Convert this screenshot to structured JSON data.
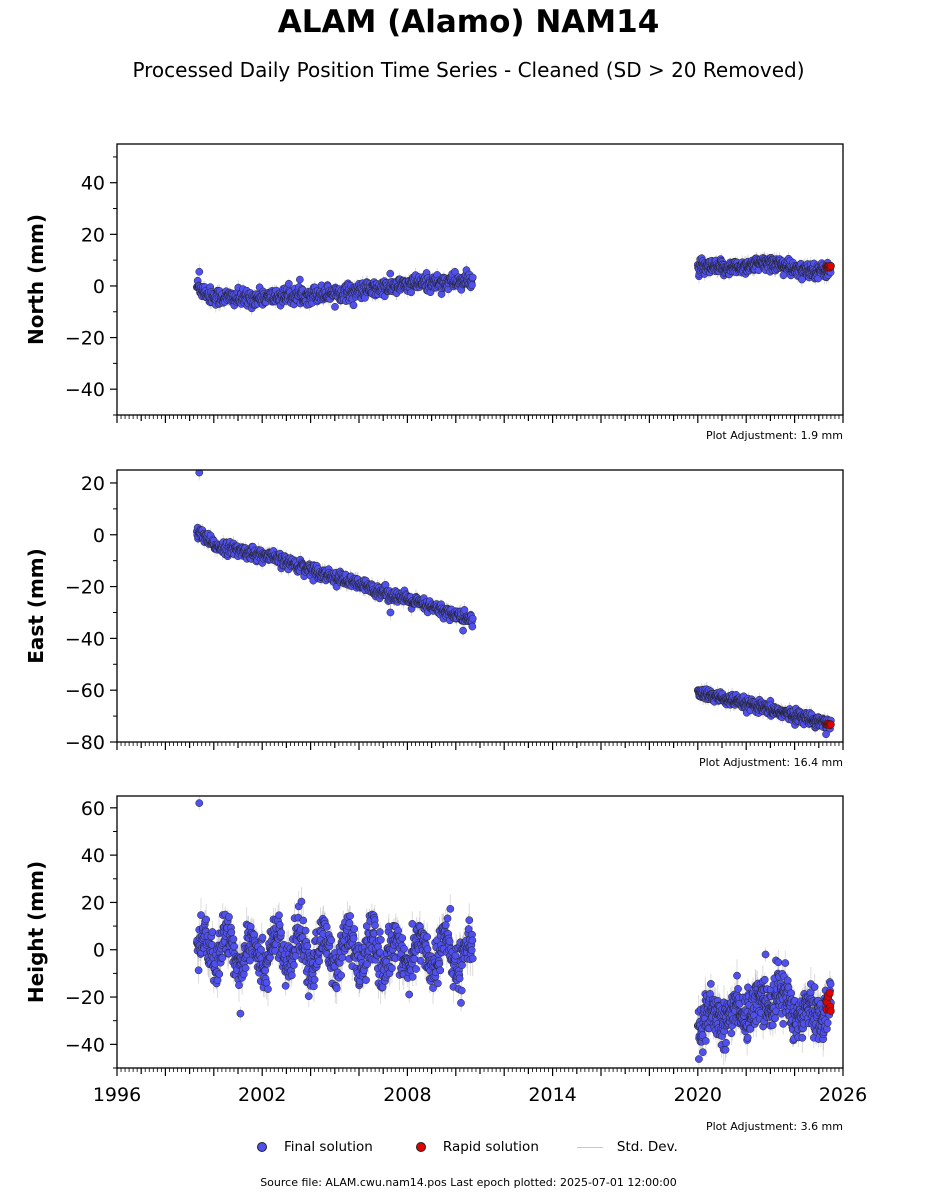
{
  "title": "ALAM (Alamo) NAM14",
  "subtitle": "Processed Daily Position Time Series - Cleaned (SD > 20 Removed)",
  "footer": "Source file: ALAM.cwu.nam14.pos  Last epoch plotted: 2025-07-01 12:00:00",
  "legend": {
    "final": "Final solution",
    "rapid": "Rapid solution",
    "std": "Std. Dev."
  },
  "colors": {
    "final": "#5050ee",
    "rapid": "#e00000",
    "std": "#c8c8c8",
    "edge": "#222222"
  },
  "chart_data": [
    {
      "type": "scatter",
      "name": "north",
      "ylabel": "North (mm)",
      "xlim": [
        1996,
        2026
      ],
      "ylim": [
        -50,
        55
      ],
      "yticks": [
        -40,
        -20,
        0,
        20,
        40
      ],
      "ytick_labels": [
        "−40",
        "−20",
        "0",
        "20",
        "40"
      ],
      "adjustment": "Plot Adjustment: 1.9 mm",
      "segments": [
        {
          "x_start": 1999.3,
          "x_end": 2010.7,
          "trend": [
            [
              1999.3,
              0
            ],
            [
              1999.9,
              -4
            ],
            [
              2001.2,
              -5
            ],
            [
              2003.0,
              -4
            ],
            [
              2006.0,
              -2
            ],
            [
              2008.5,
              1
            ],
            [
              2010.7,
              2
            ]
          ],
          "noise": 1.6,
          "sd": 2.0,
          "count": 700
        },
        {
          "x_start": 2020.0,
          "x_end": 2025.5,
          "trend": [
            [
              2020.0,
              7
            ],
            [
              2021.5,
              7
            ],
            [
              2023.0,
              9
            ],
            [
              2023.6,
              8
            ],
            [
              2024.0,
              6
            ],
            [
              2025.5,
              6
            ]
          ],
          "noise": 1.4,
          "sd": 2.0,
          "count": 450
        }
      ],
      "outliers": [
        [
          1999.4,
          5.5
        ],
        [
          2024.3,
          2.5
        ]
      ],
      "rapid": {
        "x_start": 2025.3,
        "x_end": 2025.5,
        "y": 7,
        "count": 10
      }
    },
    {
      "type": "scatter",
      "name": "east",
      "ylabel": "East (mm)",
      "xlim": [
        1996,
        2026
      ],
      "ylim": [
        -80,
        25
      ],
      "yticks": [
        -80,
        -60,
        -40,
        -20,
        0,
        20
      ],
      "ytick_labels": [
        "−80",
        "−60",
        "−40",
        "−20",
        "0",
        "20"
      ],
      "adjustment": "Plot Adjustment: 16.4 mm",
      "segments": [
        {
          "x_start": 1999.3,
          "x_end": 2010.7,
          "trend": [
            [
              1999.3,
              1
            ],
            [
              1999.6,
              -1
            ],
            [
              2000.0,
              -4
            ],
            [
              2002.5,
              -9
            ],
            [
              2010.7,
              -33
            ]
          ],
          "noise": 1.2,
          "sd": 2.0,
          "count": 700
        },
        {
          "x_start": 2020.0,
          "x_end": 2025.5,
          "trend": [
            [
              2020.0,
              -61
            ],
            [
              2025.5,
              -73
            ]
          ],
          "noise": 1.1,
          "sd": 2.0,
          "count": 450
        }
      ],
      "outliers": [
        [
          1999.4,
          24
        ],
        [
          2010.3,
          -37
        ],
        [
          2025.3,
          -77
        ],
        [
          2007.3,
          -30
        ]
      ],
      "rapid": {
        "x_start": 2025.3,
        "x_end": 2025.5,
        "y": -73,
        "count": 10
      }
    },
    {
      "type": "scatter",
      "name": "height",
      "ylabel": "Height (mm)",
      "xlim": [
        1996,
        2026
      ],
      "ylim": [
        -50,
        65
      ],
      "yticks": [
        -40,
        -20,
        0,
        20,
        40,
        60
      ],
      "ytick_labels": [
        "−40",
        "−20",
        "0",
        "20",
        "40",
        "60"
      ],
      "xticks": [
        1996,
        2002,
        2008,
        2014,
        2020,
        2026
      ],
      "xtick_labels": [
        "1996",
        "2002",
        "2008",
        "2014",
        "2020",
        "2026"
      ],
      "adjustment": "Plot Adjustment: 3.6 mm",
      "segments": [
        {
          "x_start": 1999.3,
          "x_end": 2010.7,
          "trend": [
            [
              1999.3,
              0
            ],
            [
              2010.7,
              -2
            ]
          ],
          "seasonal_amp": 7,
          "noise": 5,
          "sd": 5,
          "count": 800
        },
        {
          "x_start": 2020.0,
          "x_end": 2025.5,
          "trend": [
            [
              2020.0,
              -32
            ],
            [
              2022.9,
              -22
            ],
            [
              2023.3,
              -18
            ],
            [
              2024.0,
              -26
            ],
            [
              2025.5,
              -25
            ]
          ],
          "seasonal_amp": 4,
          "noise": 5,
          "sd": 5,
          "count": 500
        }
      ],
      "outliers": [
        [
          1999.4,
          62
        ],
        [
          2001.1,
          -27
        ],
        [
          2022.8,
          -2
        ]
      ],
      "rapid": {
        "x_start": 2025.3,
        "x_end": 2025.5,
        "y": -22,
        "count": 10,
        "spread": 8
      }
    }
  ]
}
